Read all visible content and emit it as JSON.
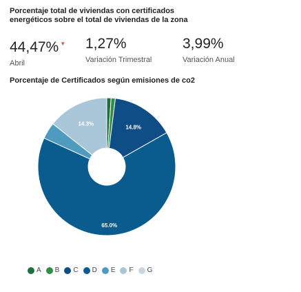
{
  "header": {
    "title": "Porcentaje total de viviendas con certificados energéticos sobre el total de viviendas de la zona"
  },
  "kpis": [
    {
      "value": "44,47%",
      "label": "Abril",
      "trend": "down"
    },
    {
      "value": "1,27%",
      "label": "Variación Trimestral"
    },
    {
      "value": "3,99%",
      "label": "Variación Anual"
    }
  ],
  "colors": {
    "A": "#1f6e3f",
    "B": "#2f8f46",
    "C": "#0f4d86",
    "D": "#0a5c8e",
    "E": "#4f9bc0",
    "F": "#a9c6d8",
    "G": "#c9d6df",
    "trend_down": "#d9534f"
  },
  "chart_data": {
    "type": "pie",
    "title": "Porcentaje de Certificados según emisiones de co2",
    "legend_position": "bottom",
    "categories": [
      "A",
      "B",
      "C",
      "D",
      "E",
      "F",
      "G"
    ],
    "values": [
      1.0,
      1.0,
      14.8,
      65.0,
      3.9,
      14.3,
      0.0
    ],
    "data_labels": [
      "",
      "",
      "14.8%",
      "65.0%",
      "",
      "14.3%",
      ""
    ]
  }
}
